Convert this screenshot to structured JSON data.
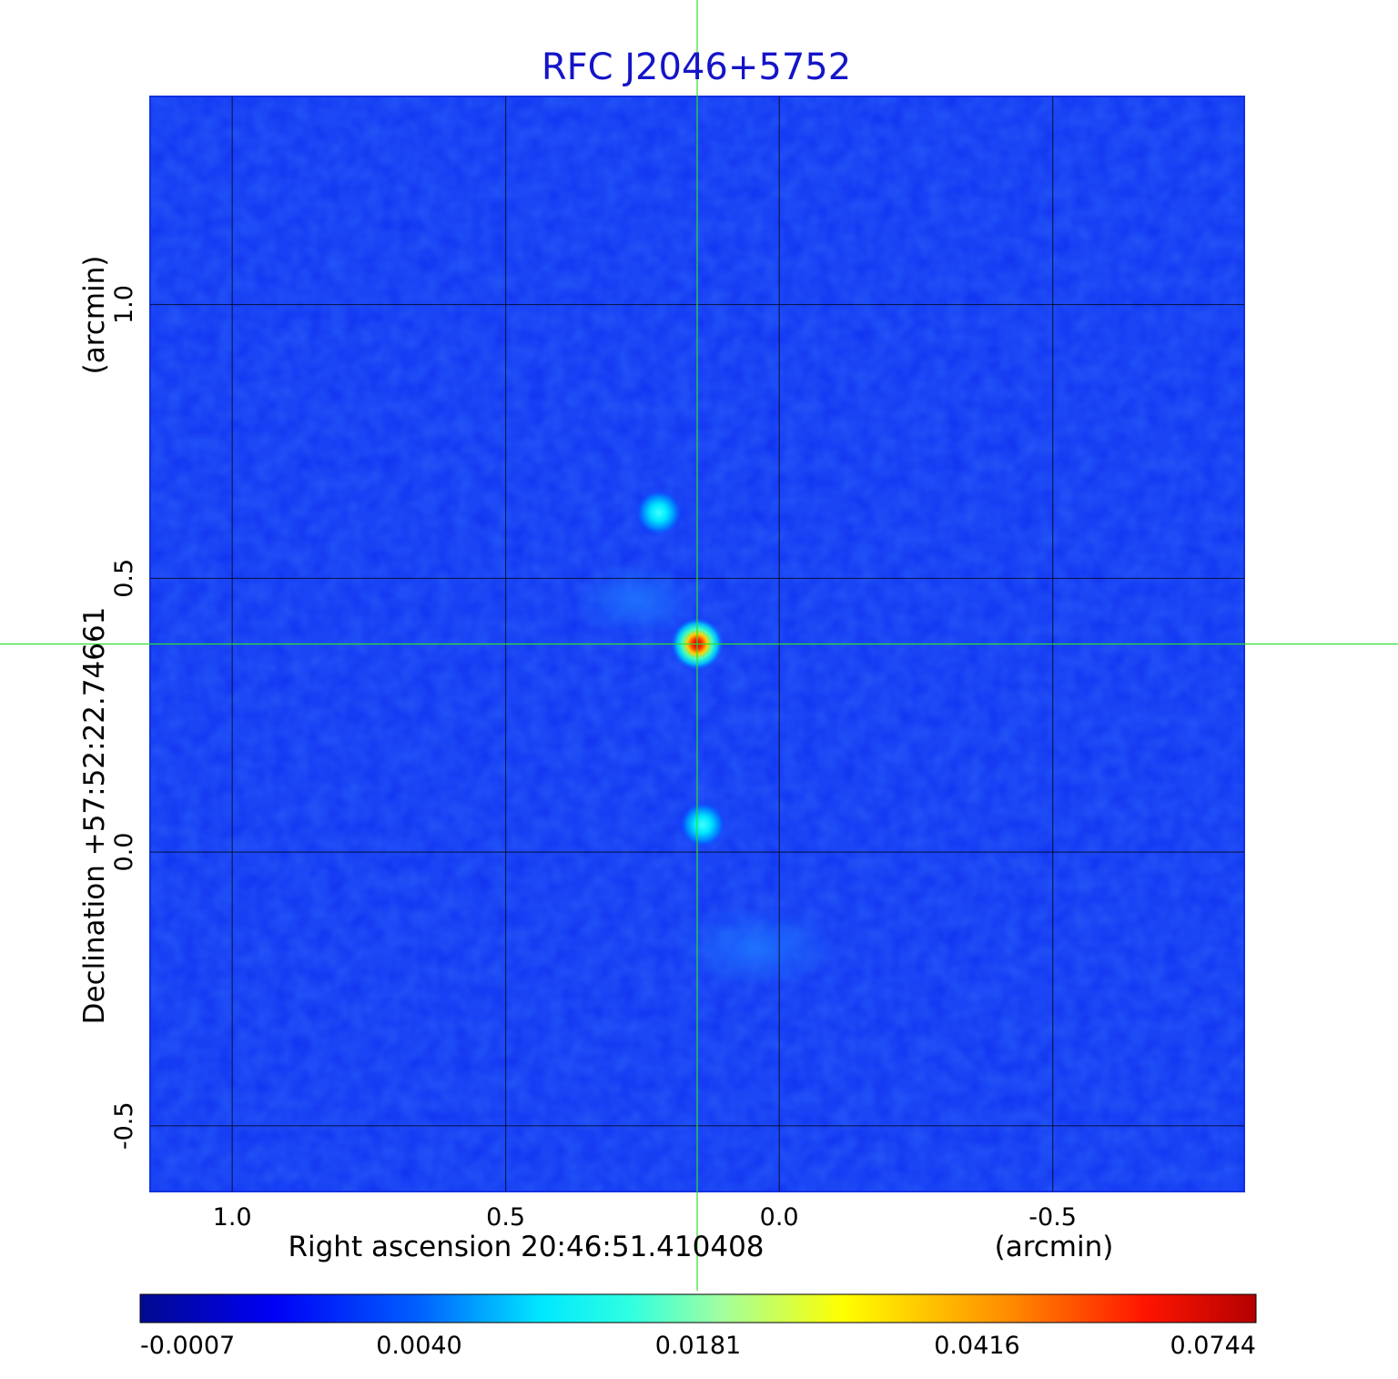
{
  "chart_data": {
    "type": "heatmap",
    "title": "RFC J2046+5752",
    "xlabel": "Right ascension  20:46:51.410408",
    "xunit": "(arcmin)",
    "ylabel": "Declination  +57:52:22.74661",
    "yunit": "(arcmin)",
    "xlim": [
      1.15,
      -0.85
    ],
    "ylim": [
      -0.62,
      1.38
    ],
    "x_ticks": [
      {
        "value": 1.0,
        "label": "1.0"
      },
      {
        "value": 0.5,
        "label": "0.5"
      },
      {
        "value": 0.0,
        "label": "0.0"
      },
      {
        "value": -0.5,
        "label": "-0.5"
      }
    ],
    "y_ticks": [
      {
        "value": -0.5,
        "label": "-0.5"
      },
      {
        "value": 0.0,
        "label": "0.0"
      },
      {
        "value": 0.5,
        "label": "0.5"
      },
      {
        "value": 1.0,
        "label": "1.0"
      }
    ],
    "grid": true,
    "crosshair": {
      "x": 0.15,
      "y": 0.38
    },
    "colormap": "jet",
    "colorbar": {
      "ticks": [
        "-0.0007",
        "0.0040",
        "0.0181",
        "0.0416",
        "0.0744"
      ]
    },
    "sources": [
      {
        "x": 0.15,
        "y": 0.38,
        "level": 1.0
      },
      {
        "x": 0.22,
        "y": 0.62,
        "level": 0.42
      },
      {
        "x": 0.14,
        "y": 0.05,
        "level": 0.4
      }
    ]
  }
}
